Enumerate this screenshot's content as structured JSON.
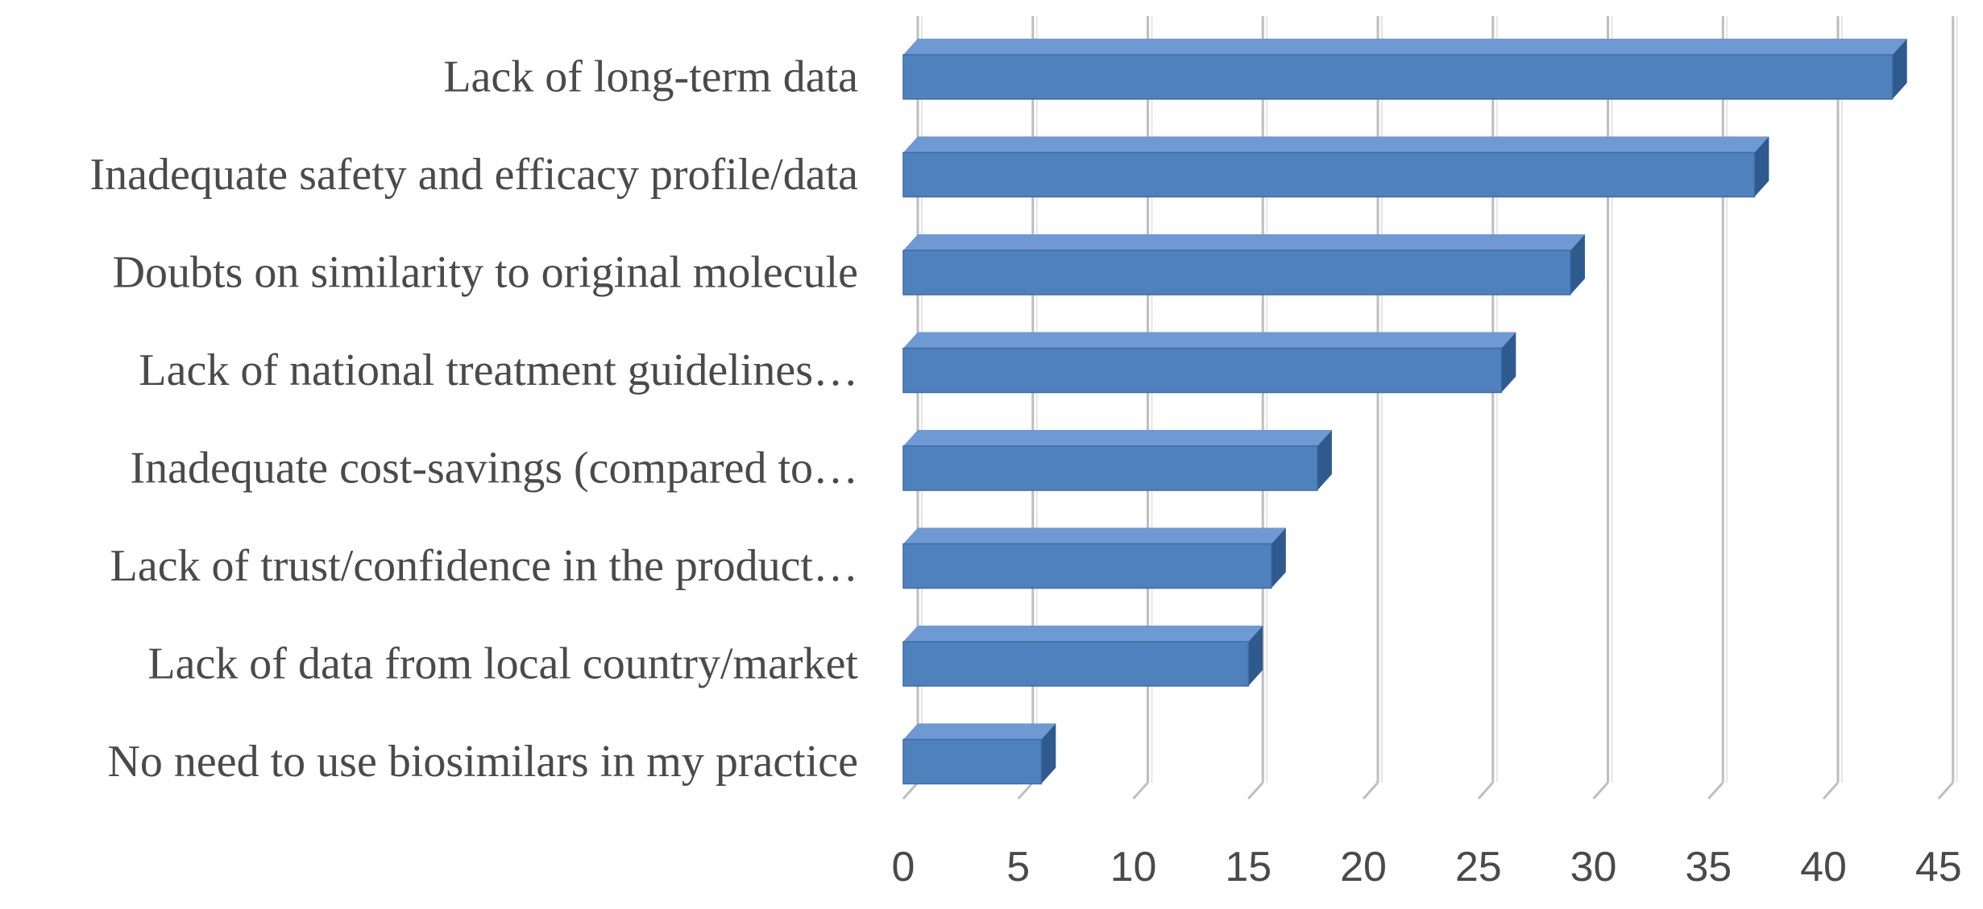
{
  "chart_data": {
    "type": "bar",
    "orientation": "horizontal",
    "style": "3d",
    "categories": [
      "Lack of long-term data",
      "Inadequate safety and efficacy profile/data",
      "Doubts on similarity to original molecule",
      "Lack of national treatment guidelines…",
      "Inadequate cost-savings (compared to…",
      "Lack of trust/confidence in the product…",
      "Lack of data from local country/market",
      "No need to use biosimilars in my practice"
    ],
    "values": [
      43,
      37,
      29,
      26,
      18,
      16,
      15,
      6
    ],
    "xlim": [
      0,
      45
    ],
    "xticks": [
      "0",
      "5",
      "10",
      "15",
      "20",
      "25",
      "30",
      "35",
      "40",
      "45"
    ],
    "title": "",
    "xlabel": "",
    "ylabel": "",
    "grid": "vertical",
    "legend": "none",
    "colors": {
      "bar_front": "#4F81BD",
      "bar_top": "#6E99D3",
      "bar_side": "#2F5A8E",
      "grid": "#BEBEBE",
      "text": "#4A4A4A"
    }
  }
}
